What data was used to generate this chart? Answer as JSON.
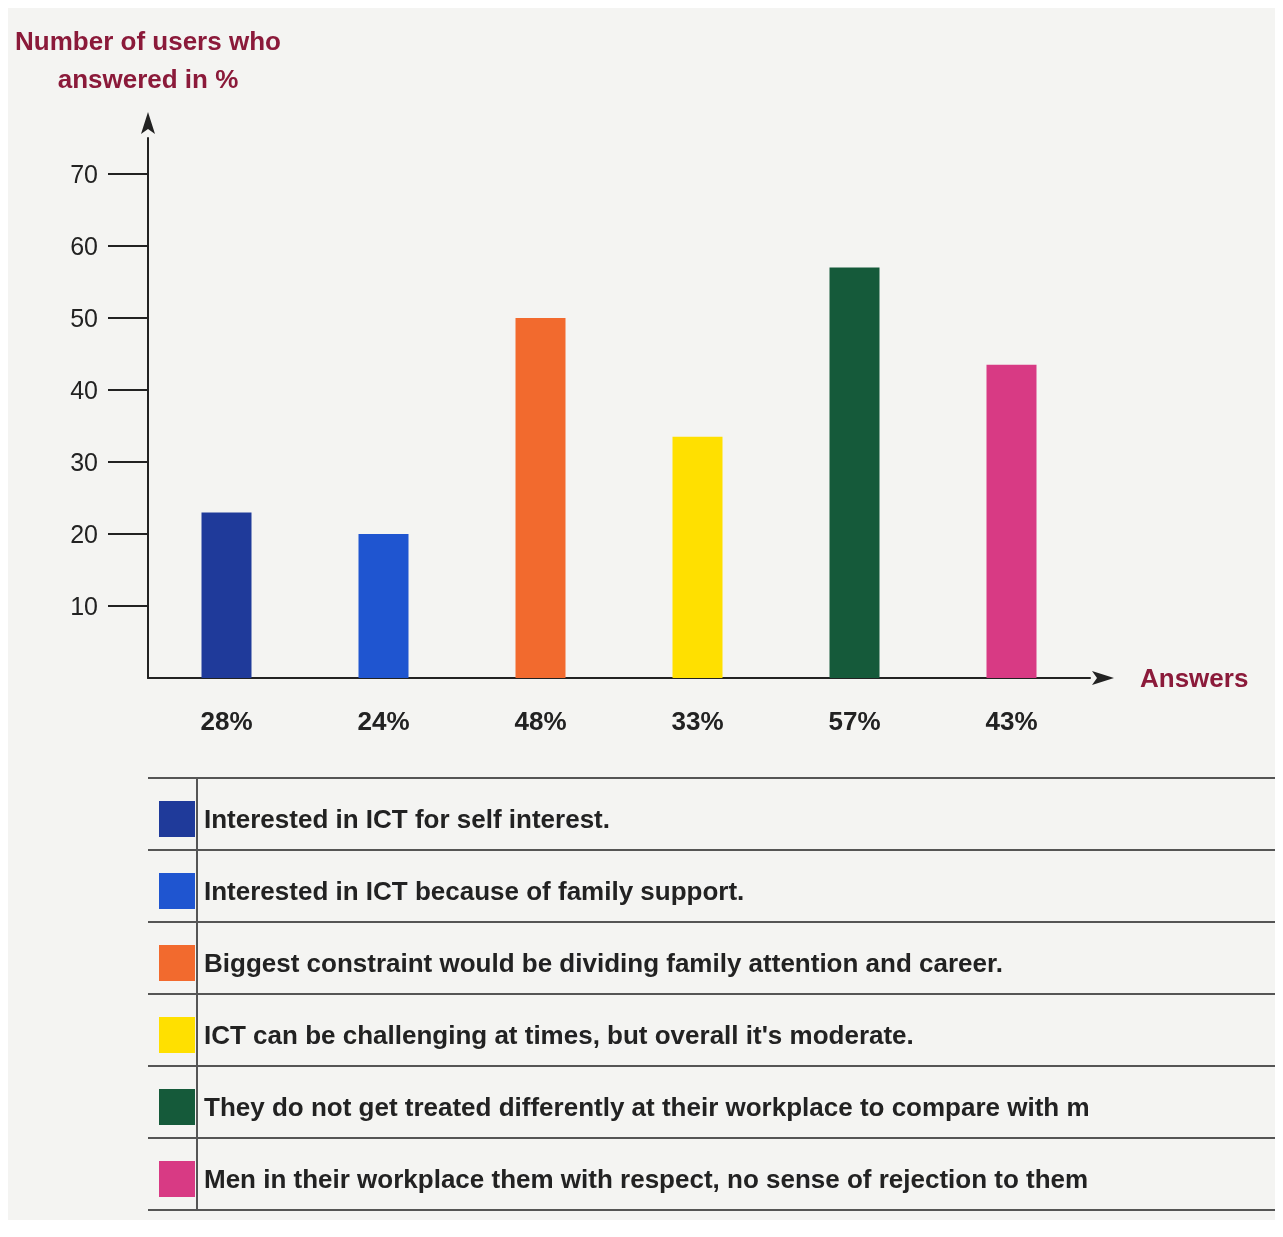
{
  "chart_data": {
    "type": "bar",
    "ylabel": "Number of users who\nanswered in %",
    "xlabel": "Answers",
    "categories": [
      "28%",
      "24%",
      "48%",
      "33%",
      "57%",
      "43%"
    ],
    "series": [
      {
        "name": "Interested in ICT for self interest.",
        "color": "#1f3a9a",
        "values": [
          23,
          null,
          null,
          null,
          null,
          null
        ]
      },
      {
        "name": "Interested in ICT because of family support.",
        "color": "#1f55d0",
        "values": [
          null,
          20,
          null,
          null,
          null,
          null
        ]
      },
      {
        "name": "Biggest constraint would be dividing family attention and career.",
        "color": "#f26a2e",
        "values": [
          null,
          null,
          50,
          null,
          null,
          null
        ]
      },
      {
        "name": "ICT can be challenging at times, but overall it's moderate.",
        "color": "#ffe000",
        "values": [
          null,
          null,
          null,
          33.5,
          null,
          null
        ]
      },
      {
        "name": "They do not get treated differently at their workplace to compare with m",
        "color": "#155a3a",
        "values": [
          null,
          null,
          null,
          null,
          57,
          null
        ]
      },
      {
        "name": "Men in their workplace them with respect, no sense of rejection to them",
        "color": "#d83a84",
        "values": [
          null,
          null,
          null,
          null,
          null,
          43.5
        ]
      }
    ],
    "ylim": [
      0,
      75
    ],
    "yticks": [
      10,
      20,
      30,
      40,
      50,
      60,
      70
    ],
    "grid": false,
    "legend": "bottom"
  }
}
